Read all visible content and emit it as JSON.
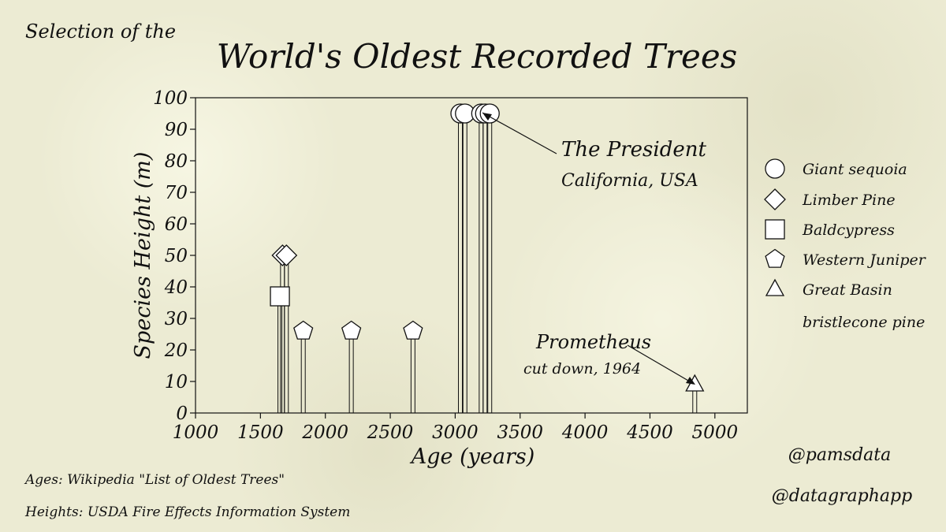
{
  "header": {
    "kicker": "Selection of the",
    "title": "World's Oldest Recorded Trees"
  },
  "footer": {
    "source_ages": "Ages: Wikipedia \"List of Oldest Trees\"",
    "source_heights": "Heights: USDA Fire Effects Information System",
    "handle_1": "@pamsdata",
    "handle_2": "@datagraphapp"
  },
  "annotations": {
    "president_name": "The President",
    "president_place": "California, USA",
    "prometheus_name": "Prometheus",
    "prometheus_note": "cut down, 1964"
  },
  "chart_data": {
    "type": "scatter",
    "style": "lollipop",
    "xlabel": "Age (years)",
    "ylabel": "Species Height (m)",
    "xlim": [
      1000,
      5250
    ],
    "ylim": [
      0,
      100
    ],
    "xticks": [
      1000,
      1500,
      2000,
      2500,
      3000,
      3500,
      4000,
      4500,
      5000
    ],
    "yticks": [
      0,
      10,
      20,
      30,
      40,
      50,
      60,
      70,
      80,
      90,
      100
    ],
    "grid": false,
    "legend_position": "right",
    "colors": {
      "marker_fill": "#ffffff",
      "stroke": "#111111"
    },
    "series": [
      {
        "name": "Giant sequoia",
        "marker": "circle",
        "points": [
          {
            "x": 3040,
            "y": 95
          },
          {
            "x": 3075,
            "y": 95
          },
          {
            "x": 3200,
            "y": 95
          },
          {
            "x": 3230,
            "y": 95
          },
          {
            "x": 3266,
            "y": 95
          }
        ]
      },
      {
        "name": "Limber Pine",
        "marker": "diamond",
        "points": [
          {
            "x": 1670,
            "y": 50
          },
          {
            "x": 1700,
            "y": 50
          }
        ]
      },
      {
        "name": "Baldcypress",
        "marker": "square",
        "points": [
          {
            "x": 1650,
            "y": 37
          }
        ]
      },
      {
        "name": "Western Juniper",
        "marker": "pentagon",
        "points": [
          {
            "x": 1830,
            "y": 26
          },
          {
            "x": 2200,
            "y": 26
          },
          {
            "x": 2675,
            "y": 26
          }
        ]
      },
      {
        "name": "Great Basin bristlecone pine",
        "marker": "triangle",
        "legend_lines": [
          "Great Basin",
          "bristlecone pine"
        ],
        "points": [
          {
            "x": 4845,
            "y": 9
          }
        ]
      }
    ]
  }
}
